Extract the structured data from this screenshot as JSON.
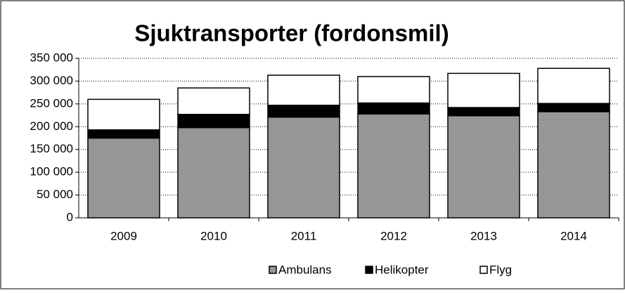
{
  "chart_data": {
    "type": "stacked_bar",
    "title": "Sjuktransporter  (fordonsmil)",
    "categories": [
      "2009",
      "2010",
      "2011",
      "2012",
      "2013",
      "2014"
    ],
    "series": [
      {
        "name": "Ambulans",
        "color": "#969696",
        "values": [
          175000,
          198000,
          221000,
          228000,
          224000,
          233000
        ]
      },
      {
        "name": "Helikopter",
        "color": "#000000",
        "values": [
          18000,
          29000,
          26000,
          24000,
          18000,
          18000
        ]
      },
      {
        "name": "Flyg",
        "color": "#ffffff",
        "values": [
          67000,
          58000,
          66000,
          58000,
          75000,
          77000
        ]
      }
    ],
    "ylim": [
      0,
      350000
    ],
    "yticks": [
      0,
      {
        "value": 50000,
        "label": "50 000"
      },
      {
        "value": 100000,
        "label": "100 000"
      },
      {
        "value": 150000,
        "label": "150 000"
      },
      {
        "value": 200000,
        "label": "200 000"
      },
      {
        "value": 250000,
        "label": "250 000"
      },
      {
        "value": 300000,
        "label": "300 000"
      },
      {
        "value": 350000,
        "label": "350 000"
      }
    ],
    "grid": true,
    "legend": "bottom"
  }
}
